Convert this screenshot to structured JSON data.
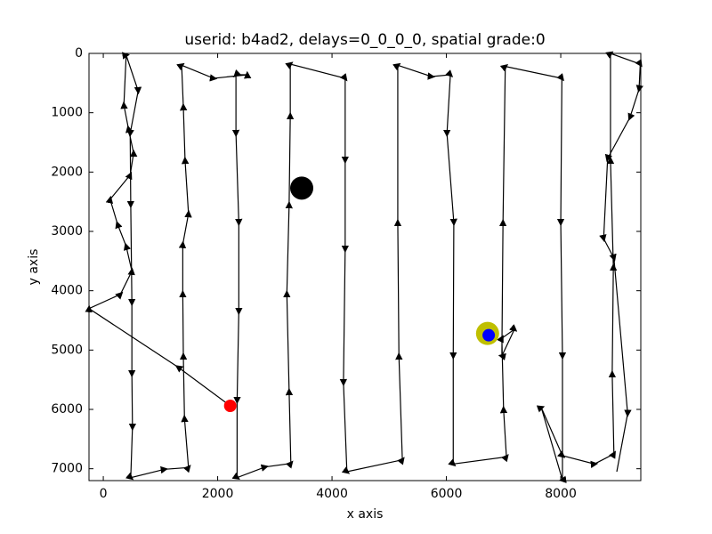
{
  "chart_data": {
    "type": "line",
    "title": "userid: b4ad2, delays=0_0_0_0, spatial grade:0",
    "xlabel": "x axis",
    "ylabel": "y axis",
    "xlim": [
      -250,
      9400
    ],
    "ylim": [
      0,
      7200
    ],
    "y_inverted": true,
    "xticks": [
      0,
      2000,
      4000,
      6000,
      8000
    ],
    "yticks": [
      0,
      1000,
      2000,
      3000,
      4000,
      5000,
      6000,
      7000
    ],
    "grid": false,
    "arrows": true,
    "series": [
      {
        "color": "#000000",
        "x": [
          2220,
          1310,
          -250,
          300,
          500,
          400,
          250,
          120,
          470,
          530,
          440,
          360,
          400,
          610,
          470,
          480,
          500,
          500,
          510,
          480,
          1070,
          1490,
          1420,
          1400,
          1390,
          1390,
          1490,
          1430,
          1400,
          1370,
          1930,
          2520,
          2320,
          2320,
          2370,
          2370,
          2340,
          2340,
          2830,
          3280,
          3250,
          3210,
          3250,
          3270,
          3270,
          4230,
          4230,
          4230,
          4200,
          4260,
          5230,
          5170,
          5150,
          5150,
          5740,
          6070,
          6010,
          6130,
          6120,
          6120,
          7050,
          7000,
          6970,
          7190,
          6970,
          6990,
          7030,
          8020,
          8000,
          8030,
          8030,
          7660,
          8030,
          8590,
          8930,
          8900,
          8920,
          8870,
          8870,
          9390,
          9370,
          9210,
          8820,
          8750,
          8930,
          9170,
          8980
        ],
        "values": [
          5940,
          5290,
          4300,
          4060,
          3670,
          3250,
          2880,
          2460,
          2050,
          1680,
          1270,
          870,
          30,
          630,
          1350,
          2550,
          4200,
          5400,
          6300,
          7150,
          7010,
          6980,
          6150,
          5100,
          4050,
          3220,
          2700,
          1800,
          900,
          200,
          420,
          360,
          360,
          1350,
          2850,
          4350,
          5850,
          7150,
          6970,
          6910,
          5700,
          4050,
          2550,
          1050,
          180,
          420,
          1800,
          3300,
          5550,
          7050,
          6850,
          5100,
          2850,
          200,
          390,
          360,
          1350,
          2850,
          5100,
          6920,
          6800,
          6000,
          4800,
          4650,
          5100,
          2850,
          220,
          420,
          2850,
          5100,
          7190,
          5970,
          6780,
          6920,
          6750,
          5400,
          3600,
          1800,
          0,
          180,
          600,
          1080,
          1770,
          3120,
          3450,
          6070,
          7050
        ]
      }
    ],
    "points": [
      {
        "x": 2220,
        "y": 5940,
        "color": "#ff0000"
      },
      {
        "x": 3470,
        "y": 2270,
        "color": "#000000"
      },
      {
        "x": 6720,
        "y": 4720,
        "color": "#bfbf00"
      },
      {
        "x": 6740,
        "y": 4750,
        "color": "#0000ff"
      }
    ]
  }
}
